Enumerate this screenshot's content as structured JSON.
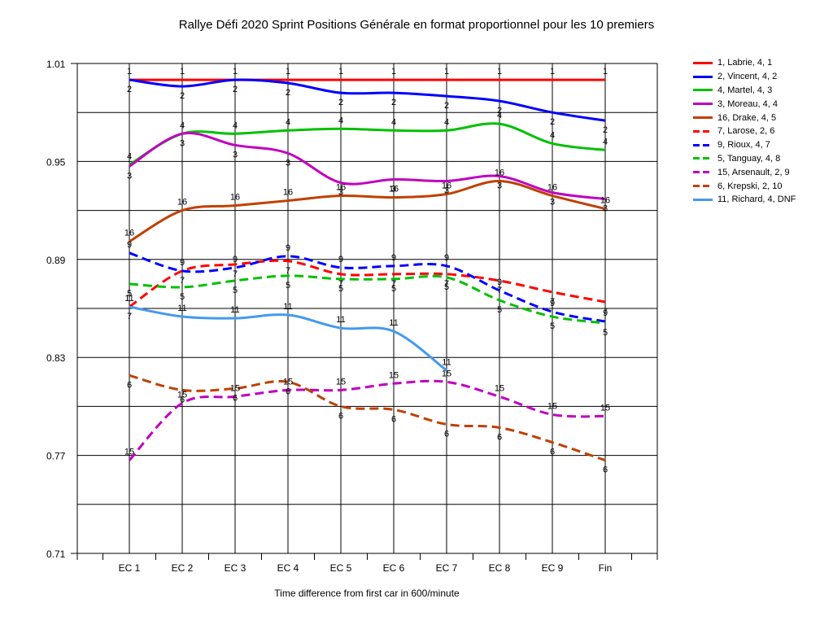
{
  "chart_data": {
    "type": "line",
    "title": "Rallye Défi 2020 Sprint  Positions Générale en format proportionnel pour les 10 premiers",
    "xlabel": "Time difference from first car in 600/minute",
    "ylabel": "",
    "categories": [
      "EC 1",
      "EC 2",
      "EC 3",
      "EC 4",
      "EC 5",
      "EC 6",
      "EC 7",
      "EC 8",
      "EC 9",
      "Fin"
    ],
    "yticks": [
      "1.01",
      "0.95",
      "0.89",
      "0.83",
      "0.77",
      "0.71"
    ],
    "ylim": [
      0.71,
      1.01
    ],
    "grid": "horizontal",
    "legend_position": "right",
    "series": [
      {
        "name": "1, Labrie, 4, 1",
        "color": "#ff0000",
        "dash": false,
        "values": [
          1.0,
          1.0,
          1.0,
          1.0,
          1.0,
          1.0,
          1.0,
          1.0,
          1.0,
          1.0
        ],
        "labels": [
          "1",
          "1",
          "1",
          "1",
          "1",
          "1",
          "1",
          "1",
          "1",
          "1"
        ]
      },
      {
        "name": "2, Vincent, 4, 2",
        "color": "#0000ff",
        "dash": false,
        "values": [
          1.0,
          0.996,
          1.0,
          0.998,
          0.992,
          0.992,
          0.99,
          0.987,
          0.98,
          0.975
        ],
        "labels": [
          "2",
          "2",
          "2",
          "2",
          "2",
          "2",
          "2",
          "2",
          "2",
          "2"
        ]
      },
      {
        "name": "4, Martel, 4, 3",
        "color": "#00c000",
        "dash": false,
        "values": [
          0.948,
          0.967,
          0.967,
          0.969,
          0.97,
          0.969,
          0.969,
          0.973,
          0.961,
          0.957
        ],
        "labels": [
          "4",
          "4",
          "4",
          "4",
          "4",
          "4",
          "4",
          "4",
          "4",
          "4"
        ]
      },
      {
        "name": "3, Moreau, 4, 4",
        "color": "#c000c0",
        "dash": false,
        "values": [
          0.947,
          0.967,
          0.96,
          0.955,
          0.937,
          0.939,
          0.938,
          0.941,
          0.931,
          0.927
        ],
        "labels": [
          "3",
          "3",
          "3",
          "3",
          "3",
          "3",
          "3",
          "3",
          "3",
          "3"
        ]
      },
      {
        "name": "16, Drake, 4, 5",
        "color": "#c04000",
        "dash": false,
        "values": [
          0.901,
          0.92,
          0.923,
          0.926,
          0.929,
          0.928,
          0.93,
          0.938,
          0.929,
          0.921
        ],
        "labels": [
          "16",
          "16",
          "16",
          "16",
          "16",
          "16",
          "16",
          "16",
          "16",
          "16"
        ]
      },
      {
        "name": "7, Larose, 2, 6",
        "color": "#ff0000",
        "dash": true,
        "values": [
          0.861,
          0.883,
          0.887,
          0.889,
          0.881,
          0.881,
          0.881,
          0.877,
          0.87,
          0.864
        ],
        "labels": [
          "7",
          "7",
          "7",
          "7",
          "7",
          "7",
          "7",
          "7",
          "7",
          "7"
        ]
      },
      {
        "name": "9, Rioux, 4, 7",
        "color": "#0000ff",
        "dash": true,
        "values": [
          0.894,
          0.883,
          0.885,
          0.892,
          0.885,
          0.886,
          0.886,
          0.871,
          0.858,
          0.852
        ],
        "labels": [
          "9",
          "9",
          "9",
          "9",
          "9",
          "9",
          "9",
          "9",
          "9",
          "9"
        ]
      },
      {
        "name": "5, Tanguay, 4, 8",
        "color": "#00c000",
        "dash": true,
        "values": [
          0.875,
          0.873,
          0.877,
          0.88,
          0.878,
          0.878,
          0.879,
          0.865,
          0.855,
          0.851
        ],
        "labels": [
          "5",
          "5",
          "5",
          "5",
          "5",
          "5",
          "5",
          "5",
          "5",
          "5"
        ]
      },
      {
        "name": "15, Arsenault, 2, 9",
        "color": "#c000c0",
        "dash": true,
        "values": [
          0.767,
          0.802,
          0.806,
          0.81,
          0.81,
          0.814,
          0.815,
          0.806,
          0.795,
          0.794
        ],
        "labels": [
          "15",
          "15",
          "15",
          "15",
          "15",
          "15",
          "15",
          "15",
          "15",
          "15"
        ]
      },
      {
        "name": "6, Krepski, 2, 10",
        "color": "#c04000",
        "dash": true,
        "values": [
          0.819,
          0.81,
          0.811,
          0.815,
          0.8,
          0.798,
          0.789,
          0.787,
          0.778,
          0.767
        ],
        "labels": [
          "6",
          "6",
          "6",
          "6",
          "6",
          "6",
          "6",
          "6",
          "6",
          "6"
        ]
      },
      {
        "name": "11, Richard, 4, DNF",
        "color": "#4499ee",
        "dash": false,
        "values": [
          0.861,
          0.855,
          0.854,
          0.856,
          0.848,
          0.846,
          0.822,
          null,
          null,
          null
        ],
        "labels": [
          "11",
          "11",
          "11",
          "11",
          "11",
          "11",
          "11",
          null,
          null,
          null
        ]
      }
    ]
  }
}
